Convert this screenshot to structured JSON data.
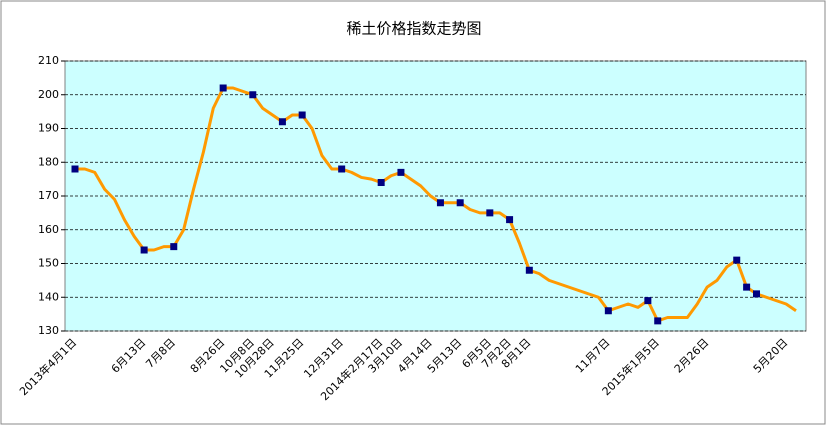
{
  "chart_data": {
    "type": "line",
    "title": "稀土价格指数走势图",
    "categories": [
      "2013年4月1日",
      null,
      null,
      null,
      null,
      null,
      null,
      "6月13日",
      null,
      null,
      "7月8日",
      null,
      null,
      null,
      null,
      "8月26日",
      null,
      null,
      "10月8日",
      null,
      "10月28日",
      null,
      null,
      "11月25日",
      null,
      null,
      null,
      "12月31日",
      null,
      null,
      null,
      "2014年2月17日",
      null,
      "3月10日",
      null,
      null,
      "4月14日",
      null,
      null,
      "5月13日",
      null,
      null,
      "6月5日",
      null,
      "7月2日",
      null,
      "8月1日",
      null,
      null,
      null,
      null,
      null,
      null,
      null,
      "11月7日",
      null,
      null,
      null,
      null,
      "2015年1月5日",
      null,
      null,
      null,
      null,
      "2月26日",
      null,
      null,
      null,
      null,
      null,
      null,
      null,
      "5月20日",
      null
    ],
    "series": [
      {
        "color": "#ff9900",
        "line": true,
        "marker": "none",
        "values": [
          178,
          178,
          177,
          172,
          169,
          163,
          158,
          154,
          154,
          155,
          155,
          160,
          172,
          183,
          196,
          202,
          202,
          201,
          200,
          196,
          194,
          192,
          194,
          194,
          190,
          182,
          178,
          178,
          177,
          175.5,
          175,
          174,
          176,
          177,
          175,
          173,
          170,
          168,
          168,
          168,
          166,
          165,
          165,
          165,
          163,
          156,
          148,
          147,
          145,
          144,
          143,
          142,
          141,
          140,
          136,
          137,
          138,
          137,
          139,
          133,
          134,
          134,
          134,
          138,
          143,
          145,
          149,
          151,
          143,
          141,
          140,
          139,
          138,
          136
        ]
      },
      {
        "color": "#000080",
        "line": false,
        "marker": "square",
        "values": [
          178,
          null,
          null,
          null,
          null,
          null,
          null,
          154,
          null,
          null,
          155,
          null,
          null,
          null,
          null,
          202,
          null,
          null,
          200,
          null,
          null,
          192,
          null,
          194,
          null,
          null,
          null,
          178,
          null,
          null,
          null,
          174,
          null,
          177,
          null,
          null,
          null,
          168,
          null,
          168,
          null,
          null,
          165,
          null,
          163,
          null,
          148,
          null,
          null,
          null,
          null,
          null,
          null,
          null,
          136,
          null,
          null,
          null,
          139,
          133,
          null,
          null,
          null,
          null,
          null,
          null,
          null,
          151,
          143,
          141,
          null,
          null,
          null,
          null
        ]
      }
    ],
    "ylim": [
      130,
      210
    ],
    "yticks": [
      130,
      140,
      150,
      160,
      170,
      180,
      190,
      200,
      210
    ],
    "grid": true,
    "plot_background": "#ccffff"
  }
}
